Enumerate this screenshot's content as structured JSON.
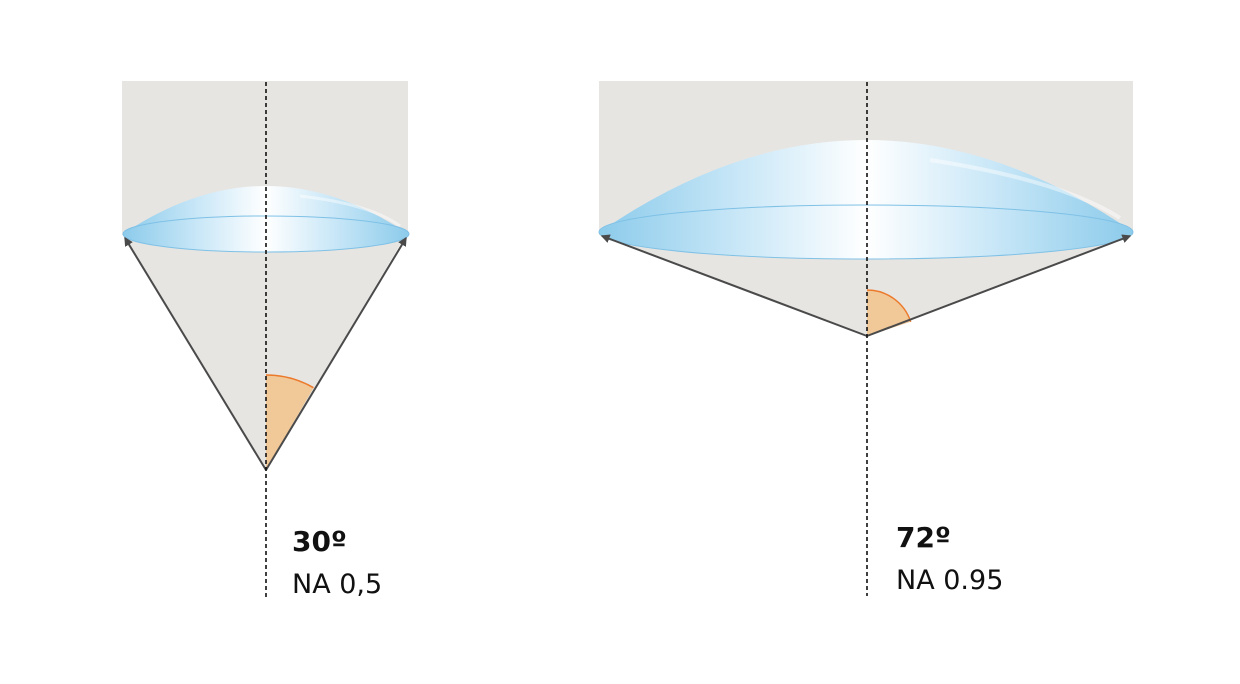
{
  "colors": {
    "background": "#ffffff",
    "panel": "#e7e5e2",
    "cone": "#e7e5e2",
    "lens_edge": "#8ccbeb",
    "lens_mid": "#cde9f8",
    "lens_center": "#ffffff",
    "lens_outline": "#7fc1e6",
    "arrow": "#4a4a4a",
    "angle_fill": "#f1c897",
    "angle_stroke": "#ec7a2c",
    "axis": "#111111"
  },
  "diagrams": [
    {
      "id": "low-na",
      "half_angle_deg": 30,
      "angle_label": "30º",
      "na_label": "NA 0,5"
    },
    {
      "id": "high-na",
      "half_angle_deg": 72,
      "angle_label": "72º",
      "na_label": "NA 0.95"
    }
  ]
}
